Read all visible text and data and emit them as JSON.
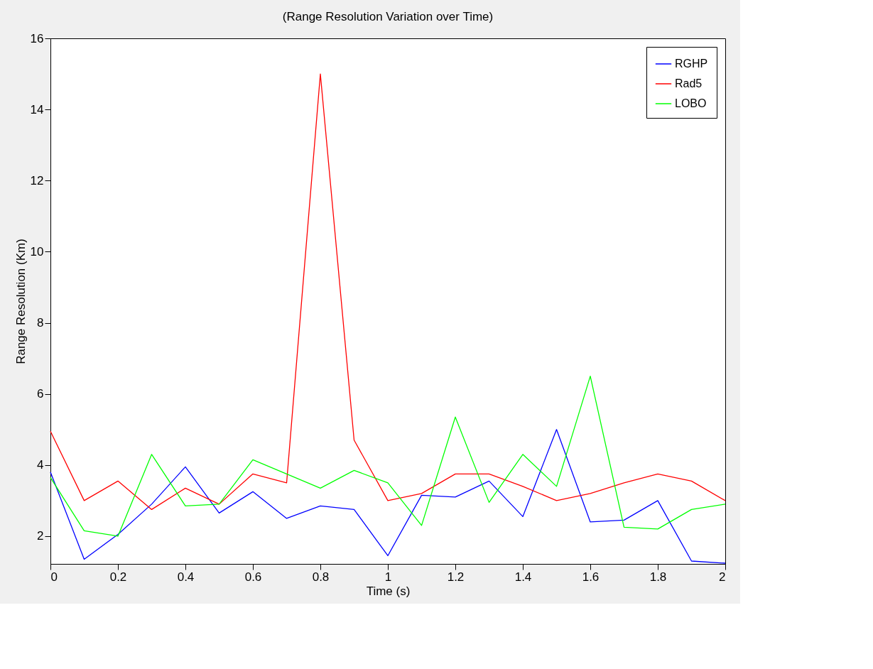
{
  "chart_data": {
    "type": "line",
    "title": "(Range Resolution Variation over Time)",
    "xlabel": "Time (s)",
    "ylabel": "Range Resolution (Km)",
    "x": [
      0,
      0.1,
      0.2,
      0.3,
      0.4,
      0.5,
      0.6,
      0.7,
      0.8,
      0.9,
      1.0,
      1.1,
      1.2,
      1.3,
      1.4,
      1.5,
      1.6,
      1.7,
      1.8,
      1.9,
      2.0
    ],
    "series": [
      {
        "name": "RGHP",
        "color": "#0000ff",
        "values": [
          3.8,
          1.35,
          2.05,
          2.9,
          3.95,
          2.65,
          3.25,
          2.5,
          2.85,
          2.75,
          1.45,
          3.15,
          3.1,
          3.55,
          2.55,
          5.0,
          2.4,
          2.45,
          3.0,
          1.3,
          1.24
        ]
      },
      {
        "name": "Rad5",
        "color": "#ff0000",
        "values": [
          4.95,
          3.0,
          3.55,
          2.75,
          3.35,
          2.9,
          3.75,
          3.5,
          15.0,
          4.7,
          3.0,
          3.2,
          3.75,
          3.75,
          3.4,
          3.0,
          3.2,
          3.5,
          3.75,
          3.55,
          3.0
        ]
      },
      {
        "name": "LOBO",
        "color": "#00ff00",
        "values": [
          3.65,
          2.15,
          2.0,
          4.3,
          2.85,
          2.9,
          4.15,
          3.75,
          3.35,
          3.85,
          3.5,
          2.3,
          5.35,
          2.95,
          4.3,
          3.4,
          6.5,
          2.25,
          2.2,
          2.75,
          2.9
        ]
      }
    ],
    "xlim": [
      0,
      2
    ],
    "xticks": [
      0,
      0.2,
      0.4,
      0.6,
      0.8,
      1,
      1.2,
      1.4,
      1.6,
      1.8,
      2
    ],
    "ylim": [
      1.22,
      16
    ],
    "yticks": [
      2,
      4,
      6,
      8,
      10,
      12,
      14,
      16
    ],
    "grid": false,
    "legend": "top right",
    "marker": "none",
    "line_style": "solid"
  }
}
